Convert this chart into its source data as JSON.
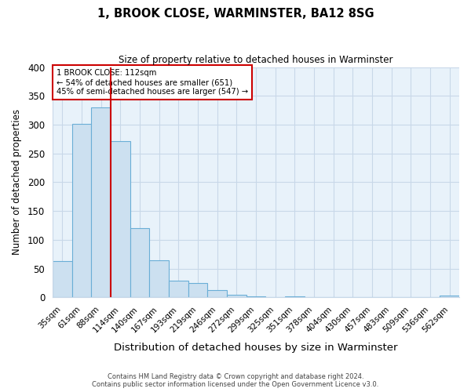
{
  "title": "1, BROOK CLOSE, WARMINSTER, BA12 8SG",
  "subtitle": "Size of property relative to detached houses in Warminster",
  "xlabel": "Distribution of detached houses by size in Warminster",
  "ylabel": "Number of detached properties",
  "bar_labels": [
    "35sqm",
    "61sqm",
    "88sqm",
    "114sqm",
    "140sqm",
    "167sqm",
    "193sqm",
    "219sqm",
    "246sqm",
    "272sqm",
    "299sqm",
    "325sqm",
    "351sqm",
    "378sqm",
    "404sqm",
    "430sqm",
    "457sqm",
    "483sqm",
    "509sqm",
    "536sqm",
    "562sqm"
  ],
  "bar_values": [
    63,
    302,
    330,
    271,
    120,
    65,
    29,
    25,
    13,
    5,
    2,
    1,
    2,
    0,
    0,
    0,
    0,
    0,
    0,
    0,
    3
  ],
  "bar_color": "#cce0f0",
  "bar_edge_color": "#6aaed6",
  "reference_line_x": 2.5,
  "reference_line_label": "1 BROOK CLOSE: 112sqm",
  "annotation_line1": "← 54% of detached houses are smaller (651)",
  "annotation_line2": "45% of semi-detached houses are larger (547) →",
  "ylim": [
    0,
    400
  ],
  "yticks": [
    0,
    50,
    100,
    150,
    200,
    250,
    300,
    350,
    400
  ],
  "footer1": "Contains HM Land Registry data © Crown copyright and database right 2024.",
  "footer2": "Contains public sector information licensed under the Open Government Licence v3.0.",
  "bg_color": "#ffffff",
  "grid_color": "#c8d8e8",
  "annotation_box_edge": "#cc0000",
  "ref_line_color": "#cc0000",
  "title_fontsize": 10.5,
  "subtitle_fontsize": 8.5
}
